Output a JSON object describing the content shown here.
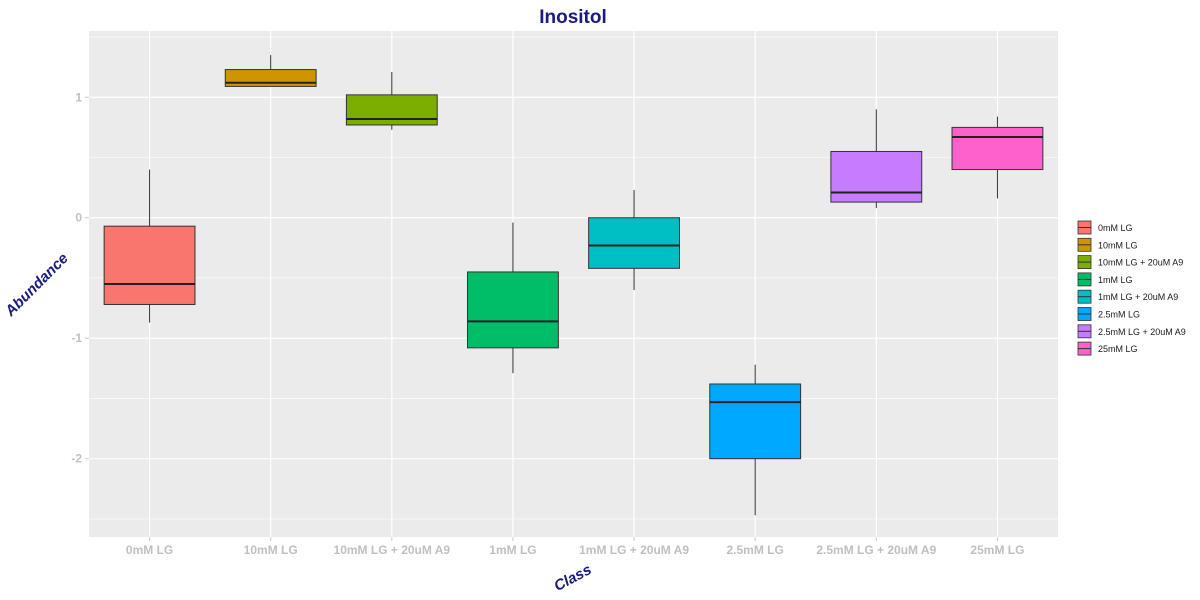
{
  "chart_data": {
    "type": "box",
    "title": "Inositol",
    "xlabel": "Class",
    "ylabel": "Abundance",
    "ylim": [
      -2.65,
      1.55
    ],
    "yticks": [
      -2,
      -1,
      0,
      1
    ],
    "grid": true,
    "legend_position": "right",
    "categories": [
      "0mM LG",
      "10mM LG",
      "10mM LG + 20uM A9",
      "1mM LG",
      "1mM LG + 20uM A9",
      "2.5mM LG",
      "2.5mM LG + 20uM A9",
      "25mM LG"
    ],
    "colors": [
      "#F8766D",
      "#CD9600",
      "#7CAE00",
      "#00BE67",
      "#00BFC4",
      "#00A9FF",
      "#C77CFF",
      "#FF61CC"
    ],
    "series": [
      {
        "name": "0mM LG",
        "min": -0.87,
        "q1": -0.72,
        "median": -0.55,
        "q3": -0.07,
        "max": 0.4
      },
      {
        "name": "10mM LG",
        "min": 1.09,
        "q1": 1.09,
        "median": 1.12,
        "q3": 1.23,
        "max": 1.35
      },
      {
        "name": "10mM LG + 20uM A9",
        "min": 0.73,
        "q1": 0.77,
        "median": 0.82,
        "q3": 1.02,
        "max": 1.21
      },
      {
        "name": "1mM LG",
        "min": -1.29,
        "q1": -1.08,
        "median": -0.86,
        "q3": -0.45,
        "max": -0.04
      },
      {
        "name": "1mM LG + 20uM A9",
        "min": -0.6,
        "q1": -0.42,
        "median": -0.23,
        "q3": 0.0,
        "max": 0.23
      },
      {
        "name": "2.5mM LG",
        "min": -2.47,
        "q1": -2.0,
        "median": -1.53,
        "q3": -1.38,
        "max": -1.22
      },
      {
        "name": "2.5mM LG + 20uM A9",
        "min": 0.08,
        "q1": 0.13,
        "median": 0.21,
        "q3": 0.55,
        "max": 0.9
      },
      {
        "name": "25mM LG",
        "min": 0.16,
        "q1": 0.4,
        "median": 0.67,
        "q3": 0.75,
        "max": 0.84
      }
    ]
  }
}
